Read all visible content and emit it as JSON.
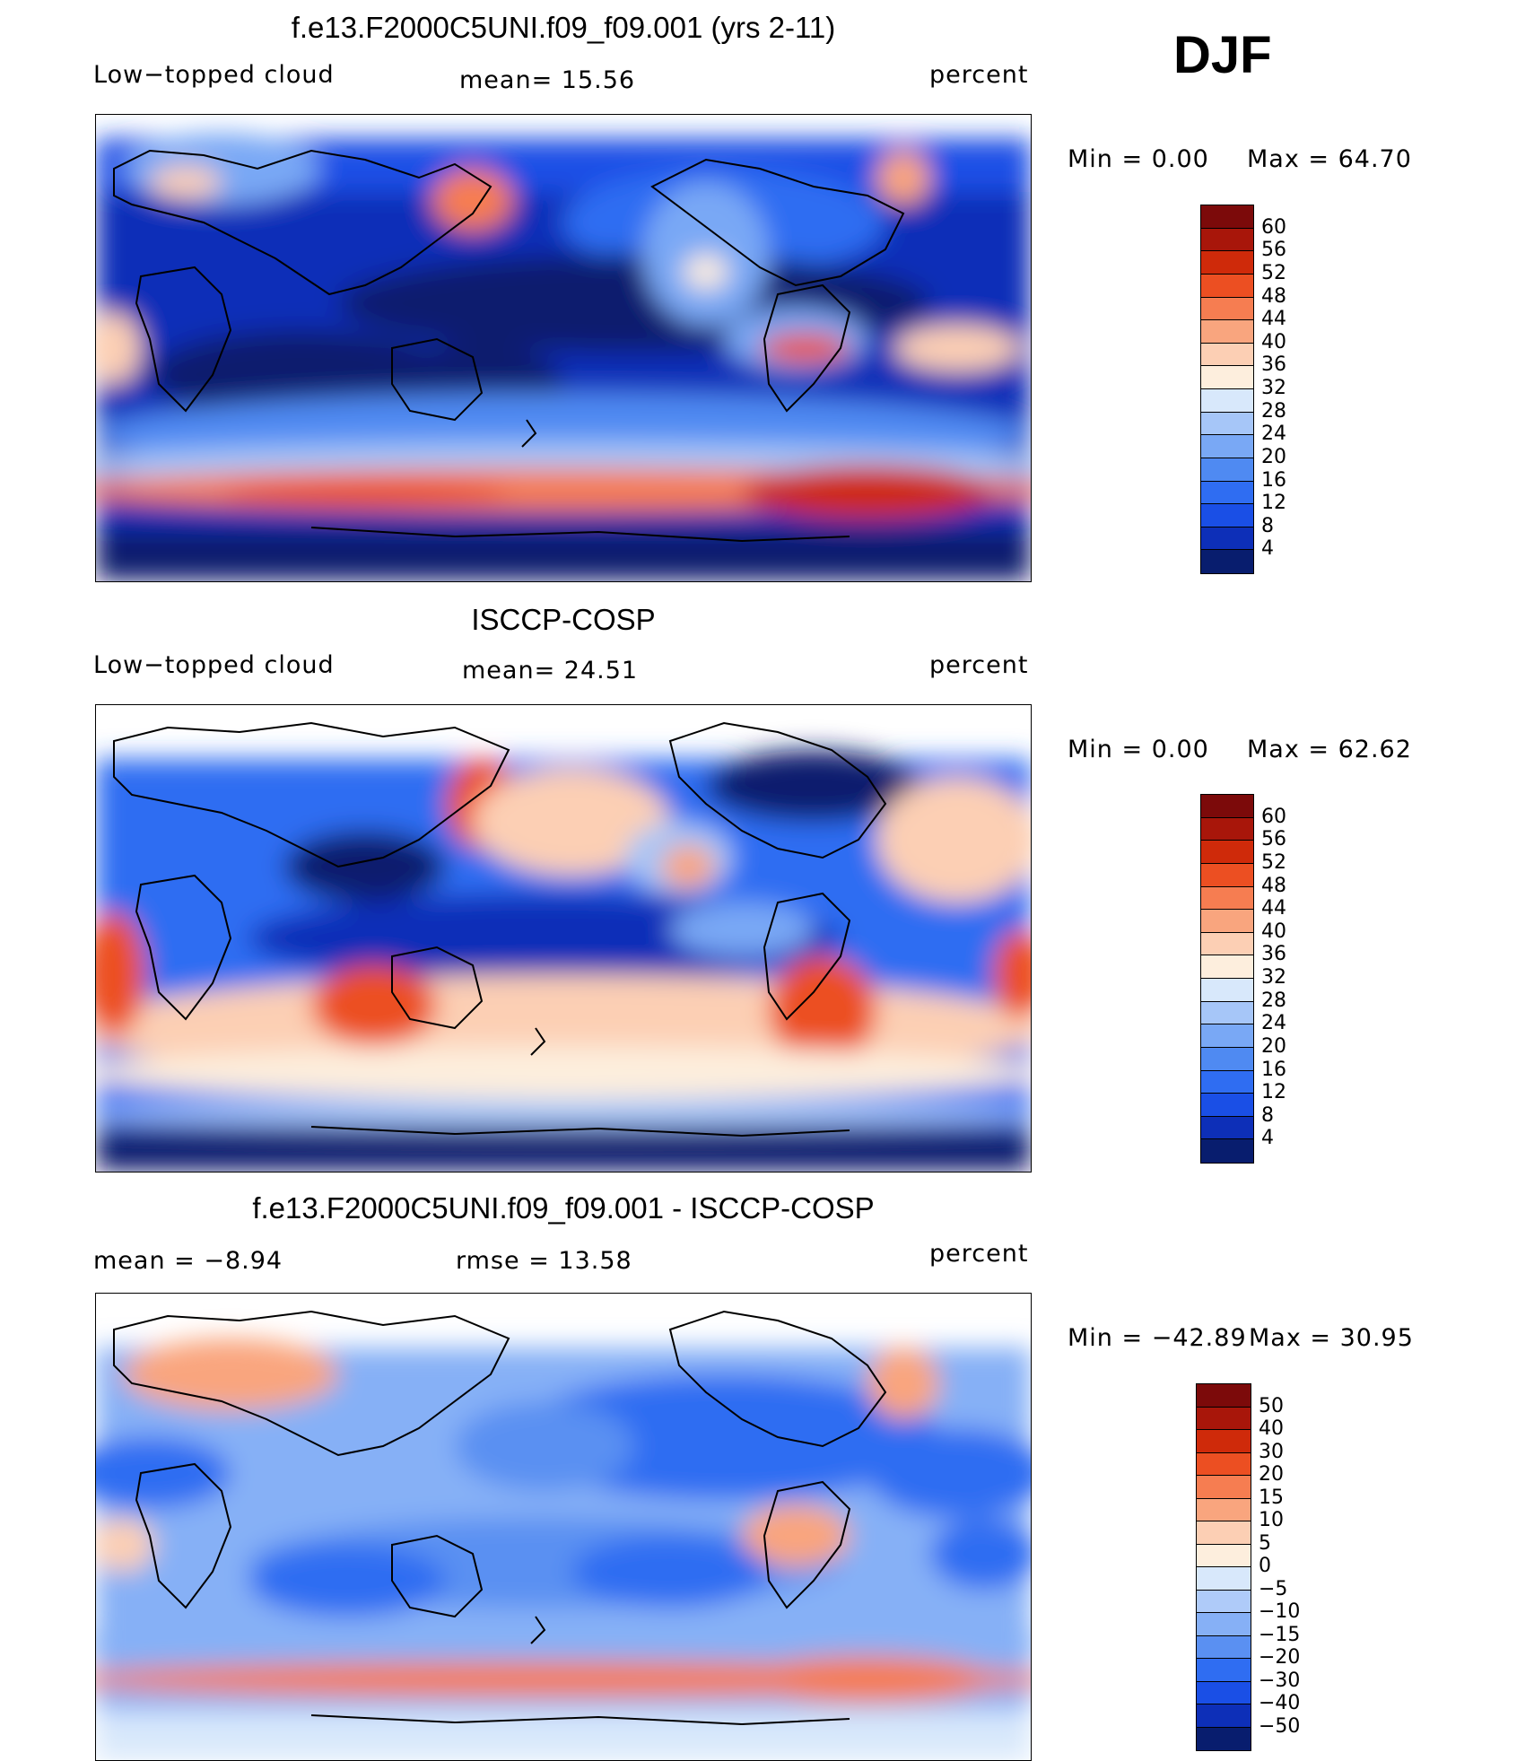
{
  "season": "DJF",
  "colors": {
    "abs_scale": [
      "#081d6e",
      "#0d2fb8",
      "#1a4fe6",
      "#2f6df2",
      "#4f8af2",
      "#79a8f5",
      "#a6c6f8",
      "#d8e8fb",
      "#fdeedd",
      "#fccfb4",
      "#f9a57e",
      "#f67d51",
      "#ec4f22",
      "#cf2a0a",
      "#a8160a",
      "#7c0a0a"
    ],
    "diff_scale": [
      "#081d6e",
      "#0d2fb8",
      "#1a4fe6",
      "#2f6df2",
      "#5a90f2",
      "#86b0f6",
      "#afcbf9",
      "#d8e8fb",
      "#fdeedd",
      "#fccfb4",
      "#f9a57e",
      "#f67d51",
      "#ec4f22",
      "#cf2a0a",
      "#a8160a",
      "#7c0a0a"
    ]
  },
  "panels": [
    {
      "title": "f.e13.F2000C5UNI.f09_f09.001 (yrs 2-11)",
      "left_label": "Low−topped cloud",
      "mid_label": "mean=   15.56",
      "right_label": "percent",
      "min_text": "Min  =     0.00",
      "max_text": "Max  =    64.70",
      "colorbar_labels": [
        "60",
        "56",
        "52",
        "48",
        "44",
        "40",
        "36",
        "32",
        "28",
        "24",
        "20",
        "16",
        "12",
        "8",
        "4"
      ]
    },
    {
      "title": "ISCCP-COSP",
      "left_label": "Low−topped cloud",
      "mid_label": "mean=   24.51",
      "right_label": "percent",
      "min_text": "Min  =     0.00",
      "max_text": "Max  =    62.62",
      "colorbar_labels": [
        "60",
        "56",
        "52",
        "48",
        "44",
        "40",
        "36",
        "32",
        "28",
        "24",
        "20",
        "16",
        "12",
        "8",
        "4"
      ]
    },
    {
      "title": "f.e13.F2000C5UNI.f09_f09.001 - ISCCP-COSP",
      "left_label": "mean  =    −8.94",
      "mid_label": "rmse  =    13.58",
      "right_label": "percent",
      "min_text": "Min  = −42.89",
      "max_text": "Max  =    30.95",
      "colorbar_labels": [
        "50",
        "40",
        "30",
        "20",
        "15",
        "10",
        "5",
        "0",
        "−5",
        "−10",
        "−15",
        "−20",
        "−30",
        "−40",
        "−50"
      ]
    }
  ]
}
